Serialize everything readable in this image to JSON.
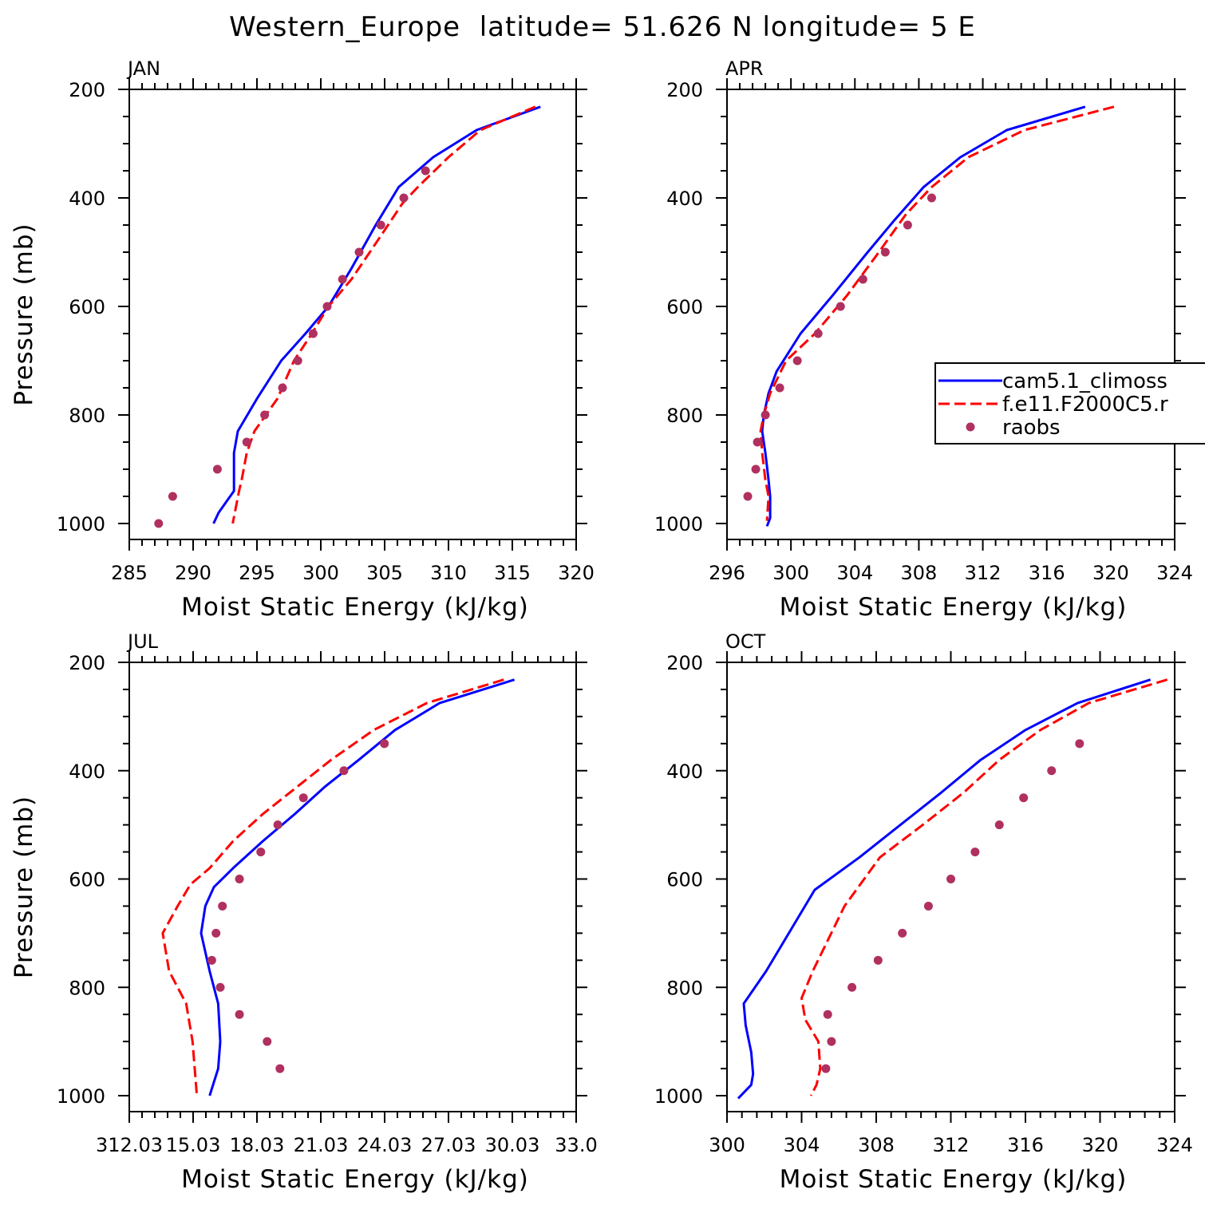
{
  "figure_title": "Western_Europe  latitude= 51.626 N longitude= 5 E",
  "colors": {
    "model1": "#0000ff",
    "model2": "#ff0000",
    "obs": "#b03060",
    "axis": "#000000"
  },
  "legend": {
    "entries": [
      {
        "label": "cam5.1_climoss",
        "style": "solid",
        "color": "#0000ff"
      },
      {
        "label": "f.e11.F2000C5.r",
        "style": "dashed",
        "color": "#ff0000"
      },
      {
        "label": "raobs",
        "style": "marker",
        "color": "#b03060"
      }
    ]
  },
  "chart_data": [
    {
      "type": "line",
      "panel_label": "JAN",
      "xlabel": "Moist Static Energy (kJ/kg)",
      "ylabel": "Pressure (mb)",
      "xlim": [
        285,
        320
      ],
      "xticks": [
        285,
        290,
        295,
        300,
        305,
        310,
        315,
        320
      ],
      "xtick_labels": [
        "285",
        "290",
        "295",
        "300",
        "305",
        "310",
        "315",
        "320"
      ],
      "ylim": [
        1000,
        200
      ],
      "yticks": [
        200,
        400,
        600,
        800,
        1000
      ],
      "ytick_labels": [
        "200",
        "400",
        "600",
        "800",
        "1000"
      ],
      "series": [
        {
          "name": "cam5.1_climoss",
          "style": "solid",
          "x": [
            317.2,
            312.2,
            308.8,
            306.1,
            304.3,
            302.4,
            300.6,
            298.8,
            296.9,
            295.0,
            293.5,
            293.2,
            293.2,
            292.6,
            292.0,
            291.6
          ],
          "y": [
            232,
            275,
            325,
            380,
            450,
            530,
            600,
            650,
            700,
            770,
            830,
            870,
            940,
            960,
            980,
            1000
          ]
        },
        {
          "name": "f.e11.F2000C5.r",
          "style": "dashed",
          "x": [
            316.8,
            312.5,
            310.0,
            307.6,
            306.4,
            304.7,
            302.4,
            300.6,
            299.3,
            297.9,
            296.6,
            294.8,
            294.2,
            293.8,
            293.6,
            293.1
          ],
          "y": [
            232,
            275,
            325,
            380,
            410,
            470,
            550,
            600,
            650,
            700,
            770,
            830,
            870,
            920,
            940,
            1000
          ]
        },
        {
          "name": "raobs",
          "style": "marker",
          "x": [
            308.2,
            306.5,
            304.7,
            303.0,
            301.7,
            300.5,
            299.4,
            298.2,
            297.0,
            295.6,
            294.2,
            291.9,
            288.4,
            287.3
          ],
          "y": [
            350,
            400,
            450,
            500,
            550,
            600,
            650,
            700,
            750,
            800,
            850,
            900,
            950,
            1000
          ]
        }
      ]
    },
    {
      "type": "line",
      "panel_label": "APR",
      "xlabel": "Moist Static Energy (kJ/kg)",
      "ylabel": "",
      "xlim": [
        296,
        324
      ],
      "xticks": [
        296,
        300,
        304,
        308,
        312,
        316,
        320,
        324
      ],
      "xtick_labels": [
        "296",
        "300",
        "304",
        "308",
        "312",
        "316",
        "320",
        "324"
      ],
      "ylim": [
        1000,
        200
      ],
      "yticks": [
        200,
        400,
        600,
        800,
        1000
      ],
      "ytick_labels": [
        "200",
        "400",
        "600",
        "800",
        "1000"
      ],
      "series": [
        {
          "name": "cam5.1_climoss",
          "style": "solid",
          "x": [
            318.4,
            313.5,
            310.6,
            308.3,
            306.5,
            304.8,
            302.6,
            300.6,
            299.1,
            298.6,
            298.3,
            298.2,
            298.4,
            298.6,
            298.7,
            298.7,
            298.5
          ],
          "y": [
            232,
            275,
            325,
            380,
            440,
            500,
            580,
            650,
            720,
            760,
            800,
            830,
            870,
            920,
            950,
            990,
            1005
          ]
        },
        {
          "name": "f.e11.F2000C5.r",
          "style": "dashed",
          "x": [
            320.2,
            314.6,
            311.1,
            308.8,
            307.2,
            305.5,
            303.5,
            301.5,
            299.7,
            298.7,
            298.3,
            298.1,
            298.2,
            298.4,
            298.6,
            298.5
          ],
          "y": [
            232,
            275,
            325,
            380,
            430,
            500,
            580,
            650,
            700,
            760,
            800,
            830,
            870,
            920,
            950,
            995
          ]
        },
        {
          "name": "raobs",
          "style": "marker",
          "x": [
            308.8,
            307.3,
            305.9,
            304.5,
            303.1,
            301.7,
            300.4,
            299.3,
            298.4,
            297.9,
            297.8,
            297.3
          ],
          "y": [
            400,
            450,
            500,
            550,
            600,
            650,
            700,
            750,
            800,
            850,
            900,
            950
          ]
        }
      ]
    },
    {
      "type": "line",
      "panel_label": "JUL",
      "xlabel": "Moist Static Energy (kJ/kg)",
      "ylabel": "Pressure (mb)",
      "xlim": [
        312.03,
        333.0
      ],
      "xticks": [
        312.03,
        315.03,
        318.03,
        321.03,
        324.03,
        327.03,
        330.03,
        333.0
      ],
      "xtick_labels": [
        "312.03",
        "15.03",
        "18.03",
        "21.03",
        "24.03",
        "27.03",
        "30.03",
        "33.0"
      ],
      "ylim": [
        1000,
        200
      ],
      "yticks": [
        200,
        400,
        600,
        800,
        1000
      ],
      "ytick_labels": [
        "200",
        "400",
        "600",
        "800",
        "1000"
      ],
      "series": [
        {
          "name": "cam5.1_climoss",
          "style": "solid",
          "x": [
            330.1,
            326.6,
            324.5,
            322.8,
            321.2,
            319.8,
            318.3,
            316.9,
            316.0,
            315.6,
            315.4,
            315.8,
            316.2,
            316.3,
            316.2,
            315.8
          ],
          "y": [
            232,
            275,
            325,
            380,
            430,
            480,
            530,
            580,
            615,
            650,
            700,
            770,
            830,
            900,
            950,
            1000
          ]
        },
        {
          "name": "f.e11.F2000C5.r",
          "style": "dashed",
          "x": [
            329.6,
            326.0,
            323.5,
            321.5,
            319.9,
            318.3,
            316.9,
            315.8,
            314.9,
            314.3,
            313.6,
            313.9,
            314.7,
            315.0,
            315.2
          ],
          "y": [
            232,
            275,
            325,
            380,
            430,
            480,
            530,
            580,
            610,
            650,
            700,
            770,
            830,
            900,
            1000
          ]
        },
        {
          "name": "raobs",
          "style": "marker",
          "x": [
            324.0,
            322.1,
            320.2,
            319.0,
            318.2,
            317.2,
            316.4,
            316.1,
            315.9,
            316.3,
            317.2,
            318.5,
            319.1
          ],
          "y": [
            350,
            400,
            450,
            500,
            550,
            600,
            650,
            700,
            750,
            800,
            850,
            900,
            950
          ]
        }
      ]
    },
    {
      "type": "line",
      "panel_label": "OCT",
      "xlabel": "Moist Static Energy (kJ/kg)",
      "ylabel": "",
      "xlim": [
        300,
        324
      ],
      "xticks": [
        300,
        304,
        308,
        312,
        316,
        320,
        324
      ],
      "xtick_labels": [
        "300",
        "304",
        "308",
        "312",
        "316",
        "320",
        "324"
      ],
      "ylim": [
        1000,
        200
      ],
      "yticks": [
        200,
        400,
        600,
        800,
        1000
      ],
      "ytick_labels": [
        "200",
        "400",
        "600",
        "800",
        "1000"
      ],
      "series": [
        {
          "name": "cam5.1_climoss",
          "style": "solid",
          "x": [
            322.7,
            318.8,
            316.0,
            313.6,
            311.5,
            309.3,
            307.1,
            304.7,
            302.1,
            300.9,
            301.0,
            301.3,
            301.4,
            301.3,
            300.6
          ],
          "y": [
            232,
            275,
            325,
            380,
            440,
            500,
            560,
            620,
            770,
            830,
            870,
            920,
            960,
            980,
            1005
          ]
        },
        {
          "name": "f.e11.F2000C5.r",
          "style": "dashed",
          "x": [
            323.6,
            319.4,
            316.8,
            314.6,
            312.7,
            310.5,
            308.2,
            306.3,
            304.6,
            304.0,
            304.2,
            304.9,
            305.0,
            304.8,
            304.5
          ],
          "y": [
            232,
            275,
            325,
            380,
            440,
            500,
            560,
            650,
            770,
            820,
            860,
            900,
            950,
            980,
            1000
          ]
        },
        {
          "name": "raobs",
          "style": "marker",
          "x": [
            318.9,
            317.4,
            315.9,
            314.6,
            313.3,
            312.0,
            310.8,
            309.4,
            308.1,
            306.7,
            305.4,
            305.6,
            305.3
          ],
          "y": [
            350,
            400,
            450,
            500,
            550,
            600,
            650,
            700,
            750,
            800,
            850,
            900,
            950
          ]
        }
      ]
    }
  ]
}
